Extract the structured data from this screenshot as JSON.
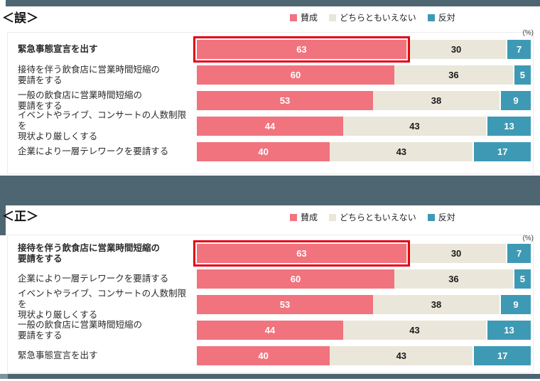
{
  "colors": {
    "agree": "#f1737e",
    "neutral": "#eae7da",
    "oppose": "#3e9ab4",
    "highlight_border": "#e60012",
    "divider_band": "#4e6671",
    "divider_corner": "#7e939c"
  },
  "legend": {
    "items": [
      {
        "key": "agree",
        "label": "賛成",
        "color": "#f1737e"
      },
      {
        "key": "neutral",
        "label": "どちらともいえない",
        "color": "#eae7da"
      },
      {
        "key": "oppose",
        "label": "反対",
        "color": "#3e9ab4"
      }
    ]
  },
  "charts": [
    {
      "title": "＜誤＞",
      "unit_label": "(%)",
      "rows": [
        {
          "label": "緊急事態宣言を出す",
          "bold": true,
          "highlight": true,
          "values": [
            63,
            30,
            7
          ]
        },
        {
          "label": "接待を伴う飲食店に営業時間短縮の\n要請をする",
          "bold": false,
          "highlight": false,
          "values": [
            60,
            36,
            5
          ]
        },
        {
          "label": "一般の飲食店に営業時間短縮の\n要請をする",
          "bold": false,
          "highlight": false,
          "values": [
            53,
            38,
            9
          ]
        },
        {
          "label": "イベントやライブ、コンサートの人数制限を\n現状より厳しくする",
          "bold": false,
          "highlight": false,
          "values": [
            44,
            43,
            13
          ]
        },
        {
          "label": "企業により一層テレワークを要請する",
          "bold": false,
          "highlight": false,
          "values": [
            40,
            43,
            17
          ]
        }
      ]
    },
    {
      "title": "＜正＞",
      "unit_label": "(%)",
      "rows": [
        {
          "label": "接待を伴う飲食店に営業時間短縮の\n要請をする",
          "bold": true,
          "highlight": true,
          "values": [
            63,
            30,
            7
          ]
        },
        {
          "label": "企業により一層テレワークを要請する",
          "bold": false,
          "highlight": false,
          "values": [
            60,
            36,
            5
          ]
        },
        {
          "label": "イベントやライブ、コンサートの人数制限を\n現状より厳しくする",
          "bold": false,
          "highlight": false,
          "values": [
            53,
            38,
            9
          ]
        },
        {
          "label": "一般の飲食店に営業時間短縮の\n要請をする",
          "bold": false,
          "highlight": false,
          "values": [
            44,
            43,
            13
          ]
        },
        {
          "label": "緊急事態宣言を出す",
          "bold": false,
          "highlight": false,
          "values": [
            40,
            43,
            17
          ]
        }
      ]
    }
  ],
  "chart_data": [
    {
      "type": "bar",
      "orientation": "horizontal",
      "stacked": true,
      "title": "＜誤＞",
      "unit": "%",
      "xlim": [
        0,
        100
      ],
      "legend_position": "top",
      "categories": [
        "緊急事態宣言を出す",
        "接待を伴う飲食店に営業時間短縮の要請をする",
        "一般の飲食店に営業時間短縮の要請をする",
        "イベントやライブ、コンサートの人数制限を現状より厳しくする",
        "企業により一層テレワークを要請する"
      ],
      "series": [
        {
          "name": "賛成",
          "color": "#f1737e",
          "values": [
            63,
            60,
            53,
            44,
            40
          ]
        },
        {
          "name": "どちらともいえない",
          "color": "#eae7da",
          "values": [
            30,
            36,
            38,
            43,
            43
          ]
        },
        {
          "name": "反対",
          "color": "#3e9ab4",
          "values": [
            7,
            5,
            9,
            13,
            17
          ]
        }
      ],
      "highlighted_category": "緊急事態宣言を出す"
    },
    {
      "type": "bar",
      "orientation": "horizontal",
      "stacked": true,
      "title": "＜正＞",
      "unit": "%",
      "xlim": [
        0,
        100
      ],
      "legend_position": "top",
      "categories": [
        "接待を伴う飲食店に営業時間短縮の要請をする",
        "企業により一層テレワークを要請する",
        "イベントやライブ、コンサートの人数制限を現状より厳しくする",
        "一般の飲食店に営業時間短縮の要請をする",
        "緊急事態宣言を出す"
      ],
      "series": [
        {
          "name": "賛成",
          "color": "#f1737e",
          "values": [
            63,
            60,
            53,
            44,
            40
          ]
        },
        {
          "name": "どちらともいえない",
          "color": "#eae7da",
          "values": [
            30,
            36,
            38,
            43,
            43
          ]
        },
        {
          "name": "反対",
          "color": "#3e9ab4",
          "values": [
            7,
            5,
            9,
            13,
            17
          ]
        }
      ],
      "highlighted_category": "接待を伴う飲食店に営業時間短縮の要請をする"
    }
  ]
}
